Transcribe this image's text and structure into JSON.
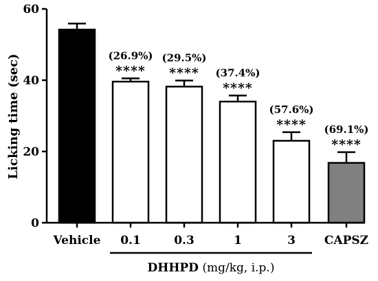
{
  "chart_data": {
    "type": "bar",
    "title": "",
    "ylabel": "Licking time (sec)",
    "ylim": [
      0,
      60
    ],
    "yticks": [
      0,
      20,
      40,
      60
    ],
    "categories": [
      "Vehicle",
      "0.1",
      "0.3",
      "1",
      "3",
      "CAPSZ"
    ],
    "values": [
      54.2,
      39.6,
      38.2,
      34.0,
      23.0,
      16.8
    ],
    "errors": [
      1.7,
      0.9,
      1.7,
      1.7,
      2.4,
      3.0
    ],
    "fill_colors": [
      "#000000",
      "#ffffff",
      "#ffffff",
      "#ffffff",
      "#ffffff",
      "#808080"
    ],
    "percent_labels": [
      "",
      "(26.9%)",
      "(29.5%)",
      "(37.4%)",
      "(57.6%)",
      "(69.1%)"
    ],
    "significance": [
      "",
      "****",
      "****",
      "****",
      "****",
      "****"
    ],
    "group": {
      "label_bold": "DHHPD",
      "label_rest": " (mg/kg, i.p.)",
      "categories": [
        "0.1",
        "0.3",
        "1",
        "3"
      ]
    }
  }
}
